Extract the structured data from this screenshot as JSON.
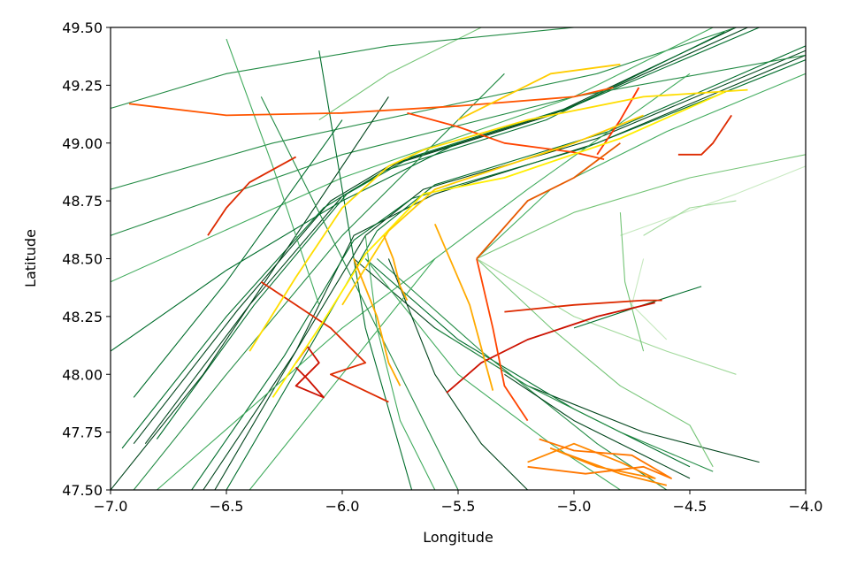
{
  "chart_data": {
    "type": "line",
    "title": "",
    "xlabel": "Longitude",
    "ylabel": "Latitude",
    "xlim": [
      -7.0,
      -4.0
    ],
    "ylim": [
      47.5,
      49.5
    ],
    "x_ticks": [
      -7.0,
      -6.5,
      -6.0,
      -5.5,
      -5.0,
      -4.5,
      -4.0
    ],
    "x_tick_labels": [
      "−7.0",
      "−6.5",
      "−6.0",
      "−5.5",
      "−5.0",
      "−4.5",
      "−4.0"
    ],
    "y_ticks": [
      47.5,
      47.75,
      48.0,
      48.25,
      48.5,
      48.75,
      49.0,
      49.25,
      49.5
    ],
    "y_tick_labels": [
      "47.50",
      "47.75",
      "48.00",
      "48.25",
      "48.50",
      "48.75",
      "49.00",
      "49.25",
      "49.50"
    ],
    "grid": false,
    "legend": "none",
    "series": [
      {
        "color": "#00441b",
        "x": [
          -6.6,
          -6.2,
          -5.95,
          -5.6,
          -4.9,
          -4.0
        ],
        "y": [
          47.5,
          48.1,
          48.6,
          48.78,
          49.0,
          49.38
        ]
      },
      {
        "color": "#00441b",
        "x": [
          -6.55,
          -6.2,
          -5.9,
          -5.65,
          -4.9,
          -4.0
        ],
        "y": [
          47.5,
          48.1,
          48.6,
          48.8,
          49.02,
          49.4
        ]
      },
      {
        "color": "#006d2c",
        "x": [
          -6.5,
          -6.15,
          -5.85,
          -5.6,
          -4.85,
          -4.0
        ],
        "y": [
          47.5,
          48.1,
          48.62,
          48.82,
          49.05,
          49.42
        ]
      },
      {
        "color": "#006d2c",
        "x": [
          -6.65,
          -6.25,
          -5.95,
          -5.7,
          -4.95,
          -4.0
        ],
        "y": [
          47.5,
          48.08,
          48.58,
          48.76,
          48.98,
          49.36
        ]
      },
      {
        "color": "#00441b",
        "x": [
          -6.9,
          -6.45,
          -6.05,
          -5.8,
          -5.1,
          -4.3
        ],
        "y": [
          47.7,
          48.28,
          48.75,
          48.9,
          49.12,
          49.5
        ]
      },
      {
        "color": "#00441b",
        "x": [
          -6.85,
          -6.4,
          -6.0,
          -5.75,
          -5.05,
          -4.25
        ],
        "y": [
          47.7,
          48.3,
          48.77,
          48.92,
          49.14,
          49.5
        ]
      },
      {
        "color": "#006d2c",
        "x": [
          -6.8,
          -6.38,
          -5.98,
          -5.7,
          -5.0,
          -4.2
        ],
        "y": [
          47.72,
          48.3,
          48.78,
          48.94,
          49.16,
          49.5
        ]
      },
      {
        "color": "#006d2c",
        "x": [
          -6.95,
          -6.5,
          -6.08,
          -5.82,
          -5.12,
          -4.35
        ],
        "y": [
          47.68,
          48.25,
          48.72,
          48.88,
          49.1,
          49.48
        ]
      },
      {
        "color": "#238b45",
        "x": [
          -7.0,
          -6.3,
          -5.6,
          -4.9,
          -4.3
        ],
        "y": [
          48.8,
          49.0,
          49.15,
          49.3,
          49.5
        ]
      },
      {
        "color": "#238b45",
        "x": [
          -7.0,
          -6.0,
          -5.0,
          -4.0
        ],
        "y": [
          48.6,
          48.95,
          49.2,
          49.38
        ]
      },
      {
        "color": "#41ab5d",
        "x": [
          -7.0,
          -6.0,
          -5.0,
          -4.4
        ],
        "y": [
          48.4,
          48.85,
          49.2,
          49.5
        ]
      },
      {
        "color": "#41ab5d",
        "x": [
          -6.8,
          -6.0,
          -5.2,
          -4.5
        ],
        "y": [
          47.5,
          48.2,
          48.8,
          49.3
        ]
      },
      {
        "color": "#238b45",
        "x": [
          -6.9,
          -6.5,
          -6.0,
          -5.3
        ],
        "y": [
          47.5,
          48.0,
          48.6,
          49.3
        ]
      },
      {
        "color": "#00441b",
        "x": [
          -7.0,
          -6.6,
          -6.2,
          -5.8
        ],
        "y": [
          47.5,
          48.0,
          48.6,
          49.2
        ]
      },
      {
        "color": "#006d2c",
        "x": [
          -6.1,
          -6.0,
          -5.9,
          -5.7
        ],
        "y": [
          49.4,
          48.8,
          48.2,
          47.5
        ]
      },
      {
        "color": "#238b45",
        "x": [
          -6.35,
          -6.1,
          -5.85,
          -5.5
        ],
        "y": [
          49.2,
          48.7,
          48.2,
          47.5
        ]
      },
      {
        "color": "#41ab5d",
        "x": [
          -5.9,
          -5.85,
          -5.75,
          -5.6
        ],
        "y": [
          48.6,
          48.2,
          47.8,
          47.5
        ]
      },
      {
        "color": "#00441b",
        "x": [
          -5.95,
          -5.6,
          -5.2,
          -4.7,
          -4.2
        ],
        "y": [
          48.5,
          48.2,
          47.95,
          47.75,
          47.62
        ]
      },
      {
        "color": "#006d2c",
        "x": [
          -5.9,
          -5.5,
          -5.0,
          -4.5
        ],
        "y": [
          48.5,
          48.15,
          47.85,
          47.6
        ]
      },
      {
        "color": "#238b45",
        "x": [
          -5.85,
          -5.4,
          -4.9,
          -4.6
        ],
        "y": [
          48.5,
          48.1,
          47.7,
          47.5
        ]
      },
      {
        "color": "#41ab5d",
        "x": [
          -5.9,
          -5.5,
          -5.1,
          -4.8
        ],
        "y": [
          48.5,
          48.0,
          47.7,
          47.5
        ]
      },
      {
        "color": "#00441b",
        "x": [
          -5.8,
          -5.6,
          -5.4,
          -5.2
        ],
        "y": [
          48.5,
          48.0,
          47.7,
          47.5
        ]
      },
      {
        "color": "#74c476",
        "x": [
          -5.42,
          -5.1,
          -4.8,
          -4.5,
          -4.4
        ],
        "y": [
          48.5,
          48.2,
          47.95,
          47.78,
          47.6
        ]
      },
      {
        "color": "#a1d99b",
        "x": [
          -5.42,
          -5.0,
          -4.6,
          -4.3
        ],
        "y": [
          48.5,
          48.25,
          48.1,
          48.0
        ]
      },
      {
        "color": "#74c476",
        "x": [
          -5.42,
          -5.0,
          -4.5,
          -4.0
        ],
        "y": [
          48.5,
          48.7,
          48.85,
          48.95
        ]
      },
      {
        "color": "#41ab5d",
        "x": [
          -5.42,
          -5.1,
          -4.6,
          -4.0
        ],
        "y": [
          48.5,
          48.8,
          49.05,
          49.3
        ]
      },
      {
        "color": "#c7e9c0",
        "x": [
          -4.8,
          -4.3,
          -4.0
        ],
        "y": [
          48.6,
          48.78,
          48.9
        ]
      },
      {
        "color": "#a1d99b",
        "x": [
          -4.7,
          -4.5,
          -4.3
        ],
        "y": [
          48.6,
          48.72,
          48.75
        ]
      },
      {
        "color": "#74c476",
        "x": [
          -6.1,
          -5.8,
          -5.4
        ],
        "y": [
          49.1,
          49.3,
          49.5
        ]
      },
      {
        "color": "#238b45",
        "x": [
          -7.0,
          -6.5,
          -5.8,
          -5.0
        ],
        "y": [
          49.15,
          49.3,
          49.42,
          49.5
        ]
      },
      {
        "color": "#006d2c",
        "x": [
          -6.9,
          -6.5,
          -6.0
        ],
        "y": [
          47.9,
          48.4,
          49.1
        ]
      },
      {
        "color": "#41ab5d",
        "x": [
          -6.5,
          -6.3,
          -6.1
        ],
        "y": [
          49.45,
          48.9,
          48.3
        ]
      },
      {
        "color": "#00441b",
        "x": [
          -5.3,
          -5.0,
          -4.7,
          -4.5
        ],
        "y": [
          48.0,
          47.8,
          47.65,
          47.55
        ]
      },
      {
        "color": "#238b45",
        "x": [
          -5.6,
          -5.2,
          -4.8,
          -4.4
        ],
        "y": [
          48.2,
          47.95,
          47.75,
          47.58
        ]
      },
      {
        "color": "#006d2c",
        "x": [
          -5.0,
          -4.7,
          -4.45
        ],
        "y": [
          48.2,
          48.3,
          48.38
        ]
      },
      {
        "color": "#c7e9c0",
        "x": [
          -4.7,
          -4.75,
          -4.6
        ],
        "y": [
          48.5,
          48.3,
          48.15
        ]
      },
      {
        "color": "#74c476",
        "x": [
          -4.8,
          -4.78,
          -4.7
        ],
        "y": [
          48.7,
          48.4,
          48.1
        ]
      },
      {
        "color": "#41ab5d",
        "x": [
          -6.4,
          -6.0,
          -5.6
        ],
        "y": [
          47.5,
          48.0,
          48.5
        ]
      },
      {
        "color": "#006d2c",
        "x": [
          -7.0,
          -6.5,
          -6.0,
          -5.5
        ],
        "y": [
          48.1,
          48.45,
          48.75,
          49.0
        ]
      },
      {
        "color": "#ff5500",
        "x": [
          -6.92,
          -6.5,
          -6.0,
          -5.5,
          -5.0,
          -4.83
        ],
        "y": [
          49.17,
          49.12,
          49.13,
          49.16,
          49.2,
          49.24
        ]
      },
      {
        "color": "#dd2a00",
        "x": [
          -6.58,
          -6.5,
          -6.4,
          -6.2
        ],
        "y": [
          48.6,
          48.72,
          48.83,
          48.94
        ]
      },
      {
        "color": "#dd2a00",
        "x": [
          -6.35,
          -6.2,
          -6.05,
          -5.95,
          -5.9,
          -6.05,
          -5.8
        ],
        "y": [
          48.4,
          48.3,
          48.2,
          48.1,
          48.05,
          48.0,
          47.88
        ]
      },
      {
        "color": "#cc1100",
        "x": [
          -6.2,
          -6.15,
          -6.1,
          -6.2,
          -6.08,
          -6.15,
          -6.2
        ],
        "y": [
          48.05,
          48.12,
          48.05,
          47.95,
          47.9,
          47.98,
          48.03
        ]
      },
      {
        "color": "#ff4400",
        "x": [
          -5.72,
          -5.5,
          -5.3,
          -5.0,
          -4.87
        ],
        "y": [
          49.13,
          49.07,
          49.0,
          48.96,
          48.93
        ]
      },
      {
        "color": "#dd2a00",
        "x": [
          -5.3,
          -5.0,
          -4.7,
          -4.62
        ],
        "y": [
          48.27,
          48.3,
          48.32,
          48.32
        ]
      },
      {
        "color": "#cc1100",
        "x": [
          -5.55,
          -5.4,
          -5.2,
          -4.9,
          -4.65
        ],
        "y": [
          47.92,
          48.05,
          48.15,
          48.25,
          48.31
        ]
      },
      {
        "color": "#ff4400",
        "x": [
          -5.42,
          -5.35,
          -5.3,
          -5.2
        ],
        "y": [
          48.5,
          48.2,
          47.95,
          47.8
        ]
      },
      {
        "color": "#dd2a00",
        "x": [
          -4.55,
          -4.45,
          -4.4,
          -4.32
        ],
        "y": [
          48.95,
          48.95,
          49.0,
          49.12
        ]
      },
      {
        "color": "#ff3300",
        "x": [
          -4.9,
          -4.8,
          -4.72
        ],
        "y": [
          48.95,
          49.1,
          49.24
        ]
      },
      {
        "color": "#e65a00",
        "x": [
          -5.42,
          -5.2,
          -5.0,
          -4.8
        ],
        "y": [
          48.5,
          48.75,
          48.85,
          49.0
        ]
      },
      {
        "color": "#ff8800",
        "x": [
          -5.2,
          -5.0,
          -4.8,
          -4.65,
          -4.9,
          -5.1,
          -4.8,
          -4.6
        ],
        "y": [
          47.62,
          47.7,
          47.62,
          47.55,
          47.6,
          47.68,
          47.57,
          47.52
        ]
      },
      {
        "color": "#ff7700",
        "x": [
          -5.2,
          -4.95,
          -4.7,
          -4.58,
          -4.75,
          -5.0,
          -5.15
        ],
        "y": [
          47.6,
          47.57,
          47.6,
          47.55,
          47.65,
          47.67,
          47.72
        ]
      },
      {
        "color": "#ffdd00",
        "x": [
          -6.4,
          -6.2,
          -6.0,
          -5.8,
          -5.65,
          -5.2,
          -4.7,
          -4.25
        ],
        "y": [
          48.1,
          48.42,
          48.72,
          48.9,
          48.97,
          49.1,
          49.2,
          49.23
        ]
      },
      {
        "color": "#ffee00",
        "x": [
          -6.3,
          -6.1,
          -5.9,
          -5.65,
          -5.3,
          -4.8,
          -4.35
        ],
        "y": [
          47.9,
          48.2,
          48.52,
          48.78,
          48.85,
          49.02,
          49.22
        ]
      },
      {
        "color": "#ffcc00",
        "x": [
          -6.0,
          -5.8,
          -5.6,
          -5.3,
          -5.0,
          -4.7
        ],
        "y": [
          48.3,
          48.62,
          48.8,
          48.9,
          49.0,
          49.12
        ]
      },
      {
        "color": "#ffcc00",
        "x": [
          -5.5,
          -5.3,
          -5.1,
          -4.8
        ],
        "y": [
          49.1,
          49.2,
          49.3,
          49.34
        ]
      },
      {
        "color": "#ffaa00",
        "x": [
          -5.95,
          -5.85,
          -5.8,
          -5.75
        ],
        "y": [
          48.5,
          48.25,
          48.05,
          47.95
        ]
      },
      {
        "color": "#ffaa00",
        "x": [
          -5.82,
          -5.78,
          -5.75,
          -5.72
        ],
        "y": [
          48.6,
          48.5,
          48.38,
          48.32
        ]
      },
      {
        "color": "#ffaa00",
        "x": [
          -5.6,
          -5.45,
          -5.35
        ],
        "y": [
          48.65,
          48.3,
          47.93
        ]
      }
    ]
  }
}
